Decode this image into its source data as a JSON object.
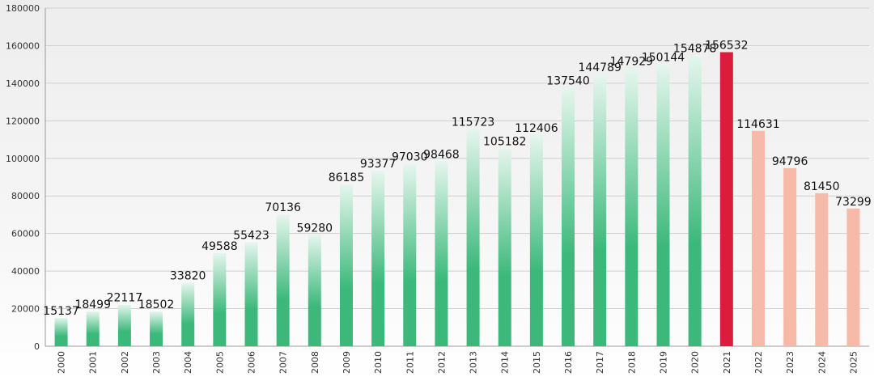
{
  "chart_data": {
    "type": "bar",
    "title": "",
    "xlabel": "",
    "ylabel": "",
    "ylim": [
      0,
      180000
    ],
    "yticks": [
      0,
      20000,
      40000,
      60000,
      80000,
      100000,
      120000,
      140000,
      160000,
      180000
    ],
    "grid": true,
    "legend": "none",
    "categories": [
      "2000",
      "2001",
      "2002",
      "2003",
      "2004",
      "2005",
      "2006",
      "2007",
      "2008",
      "2009",
      "2010",
      "2011",
      "2012",
      "2013",
      "2014",
      "2015",
      "2016",
      "2017",
      "2018",
      "2019",
      "2020",
      "2021",
      "2022",
      "2023",
      "2024",
      "2025"
    ],
    "values": [
      15137,
      18499,
      22117,
      18502,
      33820,
      49588,
      55423,
      70136,
      59280,
      86185,
      93377,
      97030,
      98468,
      115723,
      105182,
      112406,
      137540,
      144789,
      147929,
      150144,
      154878,
      156532,
      114631,
      94796,
      81450,
      73299
    ],
    "bar_groups": [
      "actual",
      "actual",
      "actual",
      "actual",
      "actual",
      "actual",
      "actual",
      "actual",
      "actual",
      "actual",
      "actual",
      "actual",
      "actual",
      "actual",
      "actual",
      "actual",
      "actual",
      "actual",
      "actual",
      "actual",
      "actual",
      "highlight",
      "forecast",
      "forecast",
      "forecast",
      "forecast"
    ],
    "colors": {
      "actual_top": "#e6f6ee",
      "actual_bottom": "#3bb87a",
      "highlight": "#dc1c3c",
      "forecast": "#f7b9a8"
    }
  }
}
